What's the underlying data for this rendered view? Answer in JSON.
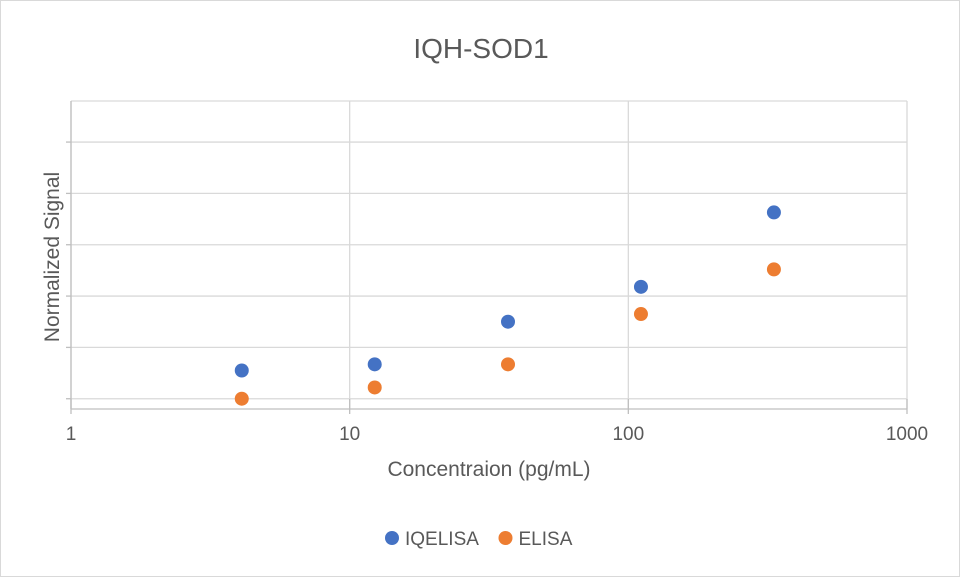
{
  "chart_data": {
    "type": "scatter",
    "title": "IQH-SOD1",
    "xlabel": "Concentraion (pg/mL)",
    "ylabel": "Normalized Signal",
    "x_scale": "log",
    "xlim": [
      1,
      1000
    ],
    "ylim": [
      0,
      6
    ],
    "y_ticks_labeled": false,
    "grid": true,
    "legend_position": "bottom",
    "x_ticks": [
      1,
      10,
      100,
      1000
    ],
    "x_tick_labels": [
      "1",
      "10",
      "100",
      "1000"
    ],
    "y_ticks": [
      0.2,
      1.2,
      2.2,
      3.2,
      4.2,
      5.2
    ],
    "series": [
      {
        "name": "IQELISA",
        "color": "#4472c4",
        "x": [
          4.1,
          12.3,
          37,
          111,
          333
        ],
        "y": [
          0.75,
          0.87,
          1.7,
          2.38,
          3.83
        ]
      },
      {
        "name": "ELISA",
        "color": "#ed7d31",
        "x": [
          4.1,
          12.3,
          37,
          111,
          333
        ],
        "y": [
          0.2,
          0.42,
          0.87,
          1.85,
          2.72
        ]
      }
    ]
  }
}
